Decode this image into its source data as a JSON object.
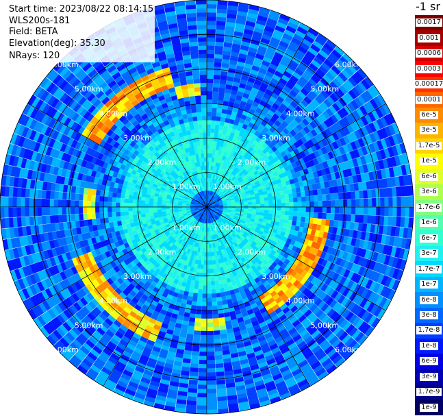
{
  "header": {
    "start_time": "Start time: 2023/08/22 08:14:15",
    "instrument": "WLS200s-181",
    "field": "Field: BETA",
    "elevation": "Elevation(deg): 35.30",
    "nrays": "NRays: 120"
  },
  "colorbar": {
    "unit": "-1 sr",
    "labels": [
      "0.0017",
      "0.001",
      "0.0006",
      "0.0003",
      "0.00017",
      "0.0001",
      "6e-5",
      "3e-5",
      "1.7e-5",
      "1e-5",
      "6e-6",
      "3e-6",
      "1.7e-6",
      "1e-6",
      "6e-7",
      "3e-7",
      "1.7e-7",
      "1e-7",
      "6e-8",
      "3e-8",
      "1.7e-8",
      "1e-8",
      "6e-9",
      "3e-9",
      "1.7e-9",
      "1e-9"
    ],
    "colors": [
      "#7a0000",
      "#a50000",
      "#d40000",
      "#ff0000",
      "#ff3300",
      "#ff6600",
      "#ff8c00",
      "#ffb300",
      "#ffd400",
      "#ffff00",
      "#e0ff2a",
      "#b0ff50",
      "#80ff80",
      "#50ffb0",
      "#30ffd0",
      "#20f0f0",
      "#00d8ff",
      "#00b4ff",
      "#0090ff",
      "#0068ff",
      "#0040ff",
      "#0018ff",
      "#0000e0",
      "#0000b0",
      "#000088",
      "#000060"
    ]
  },
  "chart_data": {
    "type": "heatmap",
    "projection": "polar (PPI)",
    "field": "BETA",
    "nrays": 120,
    "range_km": [
      0,
      6.0
    ],
    "range_ring_labels": [
      "1.00km",
      "2.00km",
      "3.00km",
      "4.00km",
      "5.00km",
      "6.00km"
    ],
    "scale": "log",
    "range_bands": [
      {
        "range_km": [
          0.0,
          0.5
        ],
        "level": "3e-8"
      },
      {
        "range_km": [
          0.5,
          2.5
        ],
        "level": "3e-7"
      },
      {
        "range_km": [
          2.5,
          3.0
        ],
        "level": "6e-8"
      },
      {
        "range_km": [
          3.0,
          6.0
        ],
        "level": "3e-8"
      }
    ],
    "high_return_arcs": [
      {
        "azimuth_deg": [
          300,
          345
        ],
        "range_km": [
          3.6,
          4.2
        ],
        "level": "3e-5"
      },
      {
        "azimuth_deg": [
          345,
          358
        ],
        "range_km": [
          3.3,
          3.6
        ],
        "level": "1e-5"
      },
      {
        "azimuth_deg": [
          95,
          150
        ],
        "range_km": [
          3.0,
          3.6
        ],
        "level": "3e-5"
      },
      {
        "azimuth_deg": [
          200,
          250
        ],
        "range_km": [
          3.6,
          4.2
        ],
        "level": "1.7e-5"
      },
      {
        "azimuth_deg": [
          265,
          280
        ],
        "range_km": [
          3.3,
          3.6
        ],
        "level": "6e-6"
      },
      {
        "azimuth_deg": [
          170,
          185
        ],
        "range_km": [
          3.3,
          3.6
        ],
        "level": "6e-6"
      }
    ]
  }
}
